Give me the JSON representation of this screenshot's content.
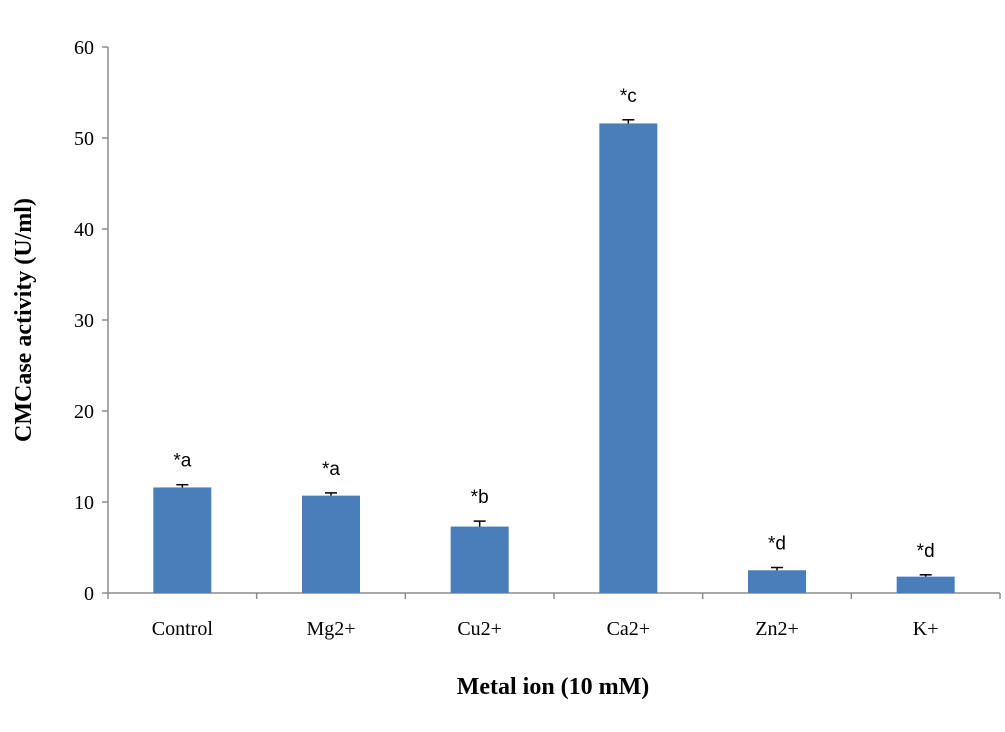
{
  "chart_data": {
    "type": "bar",
    "categories": [
      "Control",
      "Mg2+",
      "Cu2+",
      "Ca2+",
      "Zn2+",
      "K+"
    ],
    "values": [
      11.6,
      10.7,
      7.3,
      51.6,
      2.5,
      1.8
    ],
    "error": [
      0.3,
      0.3,
      0.6,
      0.4,
      0.3,
      0.2
    ],
    "data_labels": [
      "*a",
      "*a",
      "*b",
      "*c",
      "*d",
      "*d"
    ],
    "xlabel": "Metal ion (10 mM)",
    "ylabel": "CMCase activity (U/ml)",
    "ylim": [
      0,
      60
    ],
    "yticks": [
      "0",
      "10",
      "20",
      "30",
      "40",
      "50",
      "60"
    ],
    "grid": false,
    "bar_color": "#4a7ebb"
  }
}
